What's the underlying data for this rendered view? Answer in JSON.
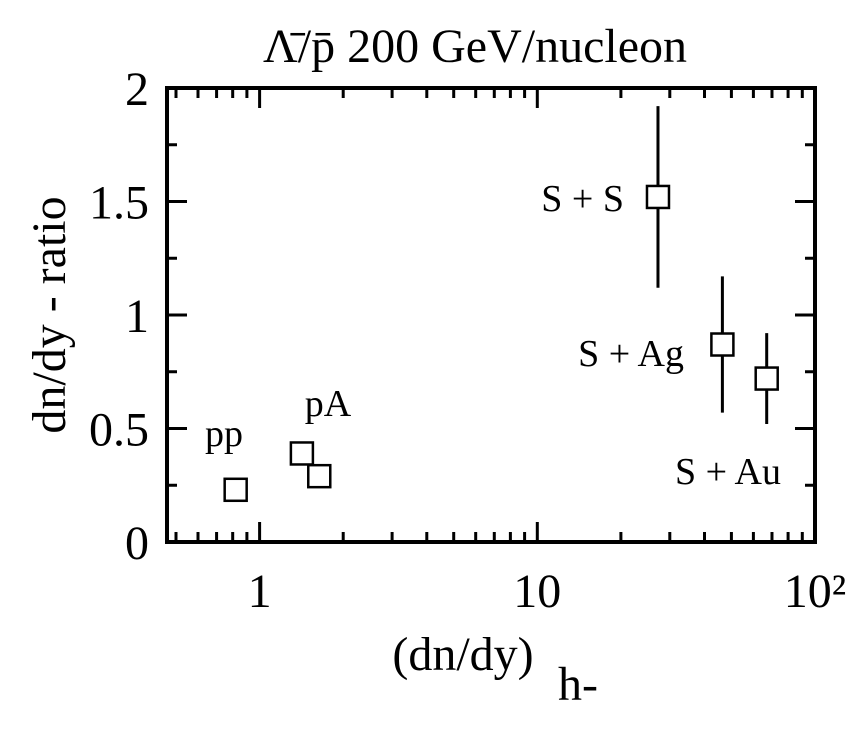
{
  "chart_data": {
    "type": "scatter",
    "title": "Λ̄/p̄  200 GeV/nucleon",
    "xlabel": "(dn/dy)",
    "xlabel_sub": "h-",
    "ylabel": "dn/dy - ratio",
    "x": [
      0.82,
      1.42,
      1.64,
      27.2,
      46.4,
      67
    ],
    "values": [
      0.23,
      0.39,
      0.29,
      1.52,
      0.87,
      0.72
    ],
    "errors": [
      0.02,
      0.05,
      0.05,
      0.4,
      0.3,
      0.2
    ],
    "annotations": [
      "pp",
      "pA",
      "S + S",
      "S + Ag",
      "S + Au"
    ],
    "color": "#000000",
    "xscale": "log",
    "xlim": [
      0.464,
      100
    ],
    "xticks": [
      1,
      10,
      {
        "value": 100,
        "label": "10²"
      }
    ],
    "xminorticks": [
      0.5,
      0.6,
      0.7,
      0.8,
      0.9,
      2,
      3,
      4,
      5,
      6,
      7,
      8,
      9,
      20,
      30,
      40,
      50,
      60,
      70,
      80,
      90
    ],
    "ylim": [
      0,
      2
    ],
    "yticks": [
      0,
      0.5,
      1,
      1.5,
      2
    ],
    "yminorticks": [
      0.25,
      0.75,
      1.25,
      1.75
    ]
  }
}
